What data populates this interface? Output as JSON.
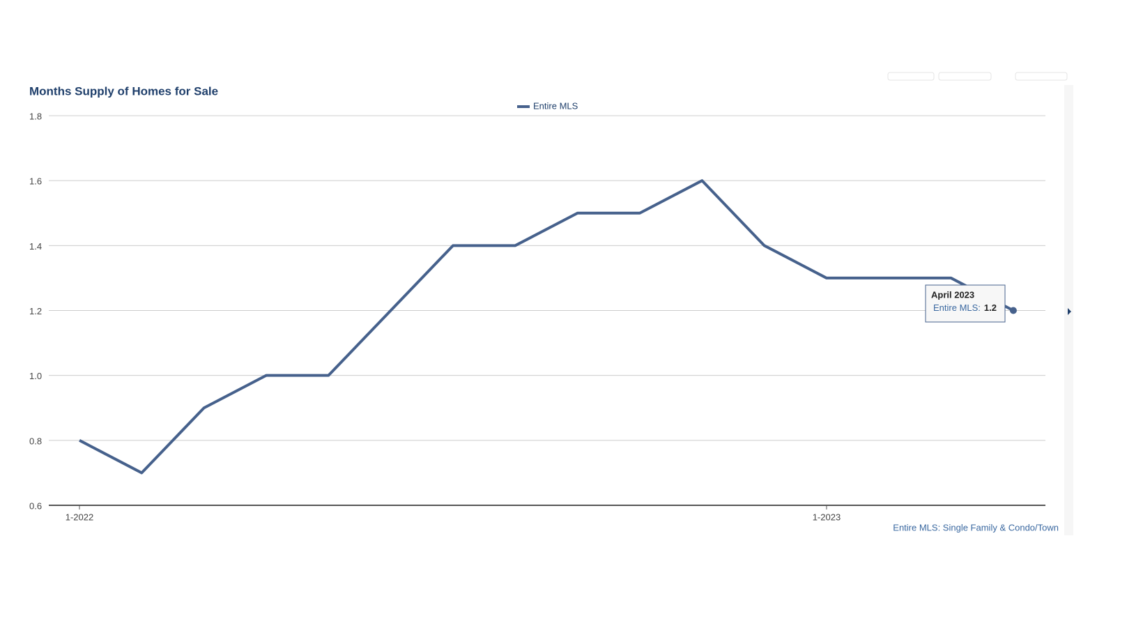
{
  "chart_data": {
    "type": "line",
    "title": "Months Supply of Homes for Sale",
    "categories": [
      "1-2022",
      null,
      null,
      null,
      null,
      null,
      null,
      null,
      null,
      null,
      null,
      null,
      "1-2023",
      null,
      null,
      null
    ],
    "series": [
      {
        "name": "Entire MLS",
        "color": "#46618c",
        "values": [
          0.8,
          0.7,
          0.9,
          1.0,
          1.0,
          1.2,
          1.4,
          1.4,
          1.5,
          1.5,
          1.6,
          1.4,
          1.3,
          1.3,
          1.3,
          1.2
        ]
      }
    ],
    "ylim": [
      0.6,
      1.8
    ],
    "yticks": [
      0.6,
      0.8,
      {
        "value": 1.0,
        "label": "1.0"
      },
      1.2,
      1.4,
      1.6,
      1.8
    ],
    "grid": true,
    "legend": "top",
    "tooltip": {
      "title": "April 2023",
      "label": "Entire MLS:",
      "index": 15
    },
    "source": "Entire MLS: Single Family & Condo/Town"
  }
}
